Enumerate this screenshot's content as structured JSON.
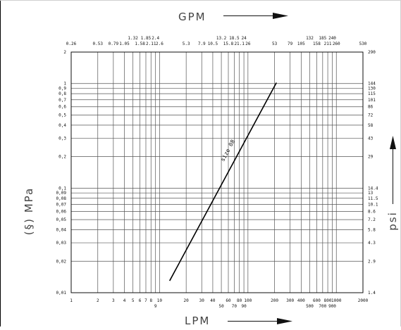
{
  "chart_data": {
    "type": "line",
    "title": "",
    "xlabel": "LPM",
    "x2label": "GPM",
    "ylabel": "(§) MPa",
    "y2label": "psi",
    "xscale": "log",
    "yscale": "log",
    "xlim": [
      1,
      2000
    ],
    "ylim": [
      0.01,
      2
    ],
    "grid": true,
    "x_ticks": [
      1,
      2,
      3,
      4,
      5,
      6,
      7,
      8,
      9,
      10,
      20,
      30,
      40,
      50,
      60,
      70,
      80,
      90,
      100,
      200,
      300,
      400,
      500,
      600,
      700,
      800,
      900,
      1000,
      2000
    ],
    "x_tick_labels_upper": [
      "1",
      "2",
      "3",
      "4",
      "5",
      "6",
      "7",
      "8",
      "10",
      "20",
      "30",
      "40",
      "60",
      "80",
      "100",
      "200",
      "300",
      "400",
      "600",
      "800",
      "1000",
      "2000"
    ],
    "x_tick_labels_lower": [
      "9",
      "50",
      "70",
      "90",
      "500",
      "700",
      "900"
    ],
    "y_ticks": [
      0.01,
      0.02,
      0.03,
      0.04,
      0.05,
      0.06,
      0.07,
      0.08,
      0.09,
      0.1,
      0.2,
      0.3,
      0.4,
      0.5,
      0.6,
      0.7,
      0.8,
      0.9,
      1,
      2
    ],
    "y_tick_labels": [
      "0.01",
      "0.02",
      "0.03",
      "0.04",
      "0.05",
      "0.06",
      "0.07",
      "0.08",
      "0.09",
      "0.1",
      "0.2",
      "0.3",
      "0.4",
      "0.5",
      "0.6",
      "0.7",
      "0.8",
      "0.9",
      "1",
      "2"
    ],
    "top_ticks": [
      {
        "label": "0.26",
        "x": 1
      },
      {
        "label": "0.53",
        "x": 2
      },
      {
        "label": "0.79",
        "x": 3
      },
      {
        "label": "1.05",
        "x": 4
      },
      {
        "label": "1.32",
        "x": 5
      },
      {
        "label": "1.58",
        "x": 6
      },
      {
        "label": "1.85",
        "x": 7
      },
      {
        "label": "2.11",
        "x": 8
      },
      {
        "label": "2.4",
        "x": 9
      },
      {
        "label": "2.6",
        "x": 10
      },
      {
        "label": "5.3",
        "x": 20
      },
      {
        "label": "7.9",
        "x": 30
      },
      {
        "label": "10.5",
        "x": 40
      },
      {
        "label": "13.2",
        "x": 50
      },
      {
        "label": "15.8",
        "x": 60
      },
      {
        "label": "18.5",
        "x": 70
      },
      {
        "label": "21.1",
        "x": 80
      },
      {
        "label": "24",
        "x": 90
      },
      {
        "label": "26",
        "x": 100
      },
      {
        "label": "53",
        "x": 200
      },
      {
        "label": "79",
        "x": 300
      },
      {
        "label": "105",
        "x": 400
      },
      {
        "label": "132",
        "x": 500
      },
      {
        "label": "158",
        "x": 600
      },
      {
        "label": "185",
        "x": 700
      },
      {
        "label": "211",
        "x": 800
      },
      {
        "label": "240",
        "x": 900
      },
      {
        "label": "260",
        "x": 1000
      },
      {
        "label": "530",
        "x": 2000
      }
    ],
    "right_ticks": [
      {
        "label": "1.4",
        "y": 0.01
      },
      {
        "label": "2.9",
        "y": 0.02
      },
      {
        "label": "4.3",
        "y": 0.03
      },
      {
        "label": "5.8",
        "y": 0.04
      },
      {
        "label": "7.2",
        "y": 0.05
      },
      {
        "label": "8.6",
        "y": 0.06
      },
      {
        "label": "10.1",
        "y": 0.07
      },
      {
        "label": "11.5",
        "y": 0.08
      },
      {
        "label": "13",
        "y": 0.09
      },
      {
        "label": "14.4",
        "y": 0.1
      },
      {
        "label": "29",
        "y": 0.2
      },
      {
        "label": "43",
        "y": 0.3
      },
      {
        "label": "58",
        "y": 0.4
      },
      {
        "label": "72",
        "y": 0.5
      },
      {
        "label": "86",
        "y": 0.6
      },
      {
        "label": "101",
        "y": 0.7
      },
      {
        "label": "115",
        "y": 0.8
      },
      {
        "label": "130",
        "y": 0.9
      },
      {
        "label": "144",
        "y": 1
      },
      {
        "label": "290",
        "y": 2
      }
    ],
    "series": [
      {
        "name": "size 08",
        "color": "#000000",
        "x": [
          13,
          210
        ],
        "y": [
          0.013,
          1.02
        ]
      }
    ]
  }
}
